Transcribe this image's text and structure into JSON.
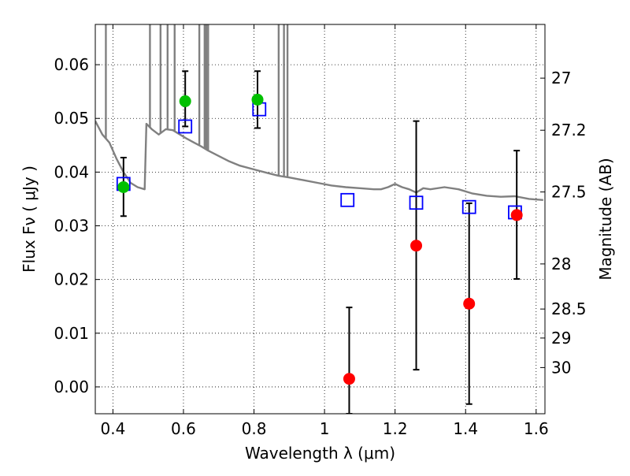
{
  "chart_data": {
    "type": "scatter",
    "title": "",
    "xlabel": "Wavelength  λ (μm)",
    "ylabel": "Flux  Fν  ( μJy )",
    "y2label": "Magnitude (AB)",
    "xlim": [
      0.35,
      1.625
    ],
    "ylim": [
      -0.005,
      0.0675
    ],
    "xticks": [
      0.4,
      0.6,
      0.8,
      1.0,
      1.2,
      1.4,
      1.6
    ],
    "xtick_labels": [
      "0.4",
      "0.6",
      "0.8",
      "1",
      "1.2",
      "1.4",
      "1.6"
    ],
    "yticks": [
      0.0,
      0.01,
      0.02,
      0.03,
      0.04,
      0.05,
      0.06
    ],
    "ytick_labels": [
      "0.00",
      "0.01",
      "0.02",
      "0.03",
      "0.04",
      "0.05",
      "0.06"
    ],
    "y2ticks": [
      {
        "label": "27",
        "flux": 0.0575
      },
      {
        "label": "27.2",
        "flux": 0.0478
      },
      {
        "label": "27.5",
        "flux": 0.0363
      },
      {
        "label": "28",
        "flux": 0.0229
      },
      {
        "label": "28.5",
        "flux": 0.0145
      },
      {
        "label": "29",
        "flux": 0.0091
      },
      {
        "label": "30",
        "flux": 0.0036
      }
    ],
    "grid": true,
    "series": [
      {
        "marker": "line",
        "color": "#808080",
        "x": [
          0.35,
          0.37,
          0.39,
          0.41,
          0.43,
          0.45,
          0.47,
          0.49,
          0.495,
          0.51,
          0.53,
          0.55,
          0.57,
          0.59,
          0.61,
          0.63,
          0.65,
          0.67,
          0.7,
          0.73,
          0.76,
          0.8,
          0.84,
          0.87,
          0.9,
          0.94,
          0.98,
          1.02,
          1.06,
          1.1,
          1.14,
          1.16,
          1.18,
          1.2,
          1.22,
          1.24,
          1.26,
          1.28,
          1.3,
          1.34,
          1.38,
          1.42,
          1.46,
          1.5,
          1.54,
          1.58,
          1.62
        ],
        "y": [
          0.0495,
          0.047,
          0.0455,
          0.0425,
          0.04,
          0.038,
          0.0372,
          0.0368,
          0.049,
          0.048,
          0.047,
          0.048,
          0.0478,
          0.047,
          0.0462,
          0.0455,
          0.0448,
          0.044,
          0.043,
          0.042,
          0.0412,
          0.0405,
          0.0398,
          0.0393,
          0.039,
          0.0385,
          0.038,
          0.0375,
          0.0372,
          0.037,
          0.0368,
          0.0368,
          0.0372,
          0.0378,
          0.0372,
          0.0368,
          0.0362,
          0.037,
          0.0368,
          0.0372,
          0.0368,
          0.036,
          0.0356,
          0.0354,
          0.0355,
          0.035,
          0.0348
        ]
      },
      {
        "marker": "square",
        "color": "#0000ff",
        "x": [
          0.43,
          0.605,
          0.815,
          1.065,
          1.26,
          1.41,
          1.54
        ],
        "y": [
          0.0378,
          0.0485,
          0.0517,
          0.0348,
          0.0343,
          0.0335,
          0.0325
        ]
      },
      {
        "marker": "circle",
        "color": "#00c000",
        "x": [
          0.43,
          0.605,
          0.81
        ],
        "y": [
          0.0372,
          0.0532,
          0.0535
        ],
        "yerr_low": [
          0.0318,
          0.0485,
          0.0482
        ],
        "yerr_high": [
          0.0427,
          0.0588,
          0.0588
        ]
      },
      {
        "marker": "circle",
        "color": "#ff0000",
        "x": [
          1.07,
          1.26,
          1.41,
          1.545
        ],
        "y": [
          0.0015,
          0.0263,
          0.0155,
          0.032
        ],
        "yerr_low": [
          -0.005,
          0.0032,
          -0.0032,
          0.0201
        ],
        "yerr_high": [
          0.0148,
          0.0495,
          0.0342,
          0.044
        ]
      }
    ],
    "spectral_spikes": [
      0.38,
      0.505,
      0.535,
      0.555,
      0.575,
      0.645,
      0.66,
      0.665,
      0.67,
      0.87,
      0.885,
      0.895
    ]
  }
}
